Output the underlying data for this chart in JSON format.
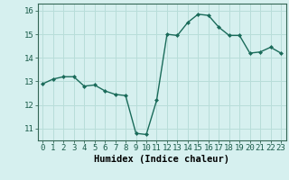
{
  "x": [
    0,
    1,
    2,
    3,
    4,
    5,
    6,
    7,
    8,
    9,
    10,
    11,
    12,
    13,
    14,
    15,
    16,
    17,
    18,
    19,
    20,
    21,
    22,
    23
  ],
  "y": [
    12.9,
    13.1,
    13.2,
    13.2,
    12.8,
    12.85,
    12.6,
    12.45,
    12.4,
    10.8,
    10.75,
    12.2,
    15.0,
    14.95,
    15.5,
    15.85,
    15.8,
    15.3,
    14.95,
    14.95,
    14.2,
    14.25,
    14.45,
    14.2
  ],
  "line_color": "#1a6b5a",
  "marker": "D",
  "marker_size": 2.0,
  "bg_color": "#d6f0ef",
  "grid_color": "#b8ddd9",
  "xlabel": "Humidex (Indice chaleur)",
  "ylim": [
    10.5,
    16.3
  ],
  "xlim": [
    -0.5,
    23.5
  ],
  "yticks": [
    11,
    12,
    13,
    14,
    15,
    16
  ],
  "xticks": [
    0,
    1,
    2,
    3,
    4,
    5,
    6,
    7,
    8,
    9,
    10,
    11,
    12,
    13,
    14,
    15,
    16,
    17,
    18,
    19,
    20,
    21,
    22,
    23
  ],
  "xlabel_fontsize": 7.5,
  "tick_fontsize": 6.5,
  "line_width": 1.0,
  "font_family": "monospace"
}
